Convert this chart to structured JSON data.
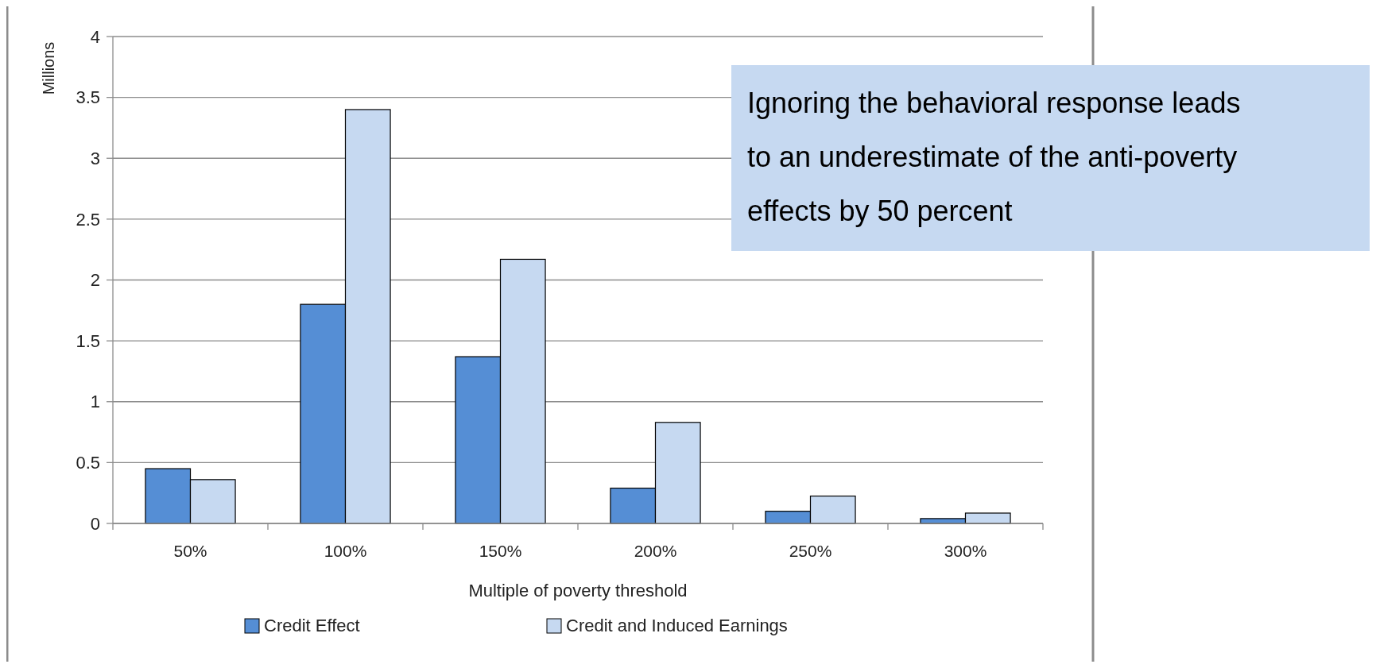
{
  "chart_data": {
    "type": "bar",
    "ylabel": "Millions",
    "xlabel": "Multiple of poverty threshold",
    "categories": [
      "50%",
      "100%",
      "150%",
      "200%",
      "250%",
      "300%"
    ],
    "series": [
      {
        "name": "Credit Effect",
        "color": "#558ed5",
        "values": [
          0.45,
          1.8,
          1.37,
          0.29,
          0.1,
          0.04
        ]
      },
      {
        "name": "Credit and Induced Earnings",
        "color": "#c6d9f1",
        "values": [
          0.36,
          3.4,
          2.17,
          0.83,
          0.225,
          0.085
        ]
      }
    ],
    "ylim": [
      0,
      4
    ],
    "yticks": [
      0,
      0.5,
      1,
      1.5,
      2,
      2.5,
      3,
      3.5,
      4
    ],
    "grid": "y",
    "legend": "bottom",
    "annotations": [
      "Ignoring the behavioral response leads to an underestimate of the anti-poverty effects by 50 percent"
    ]
  }
}
